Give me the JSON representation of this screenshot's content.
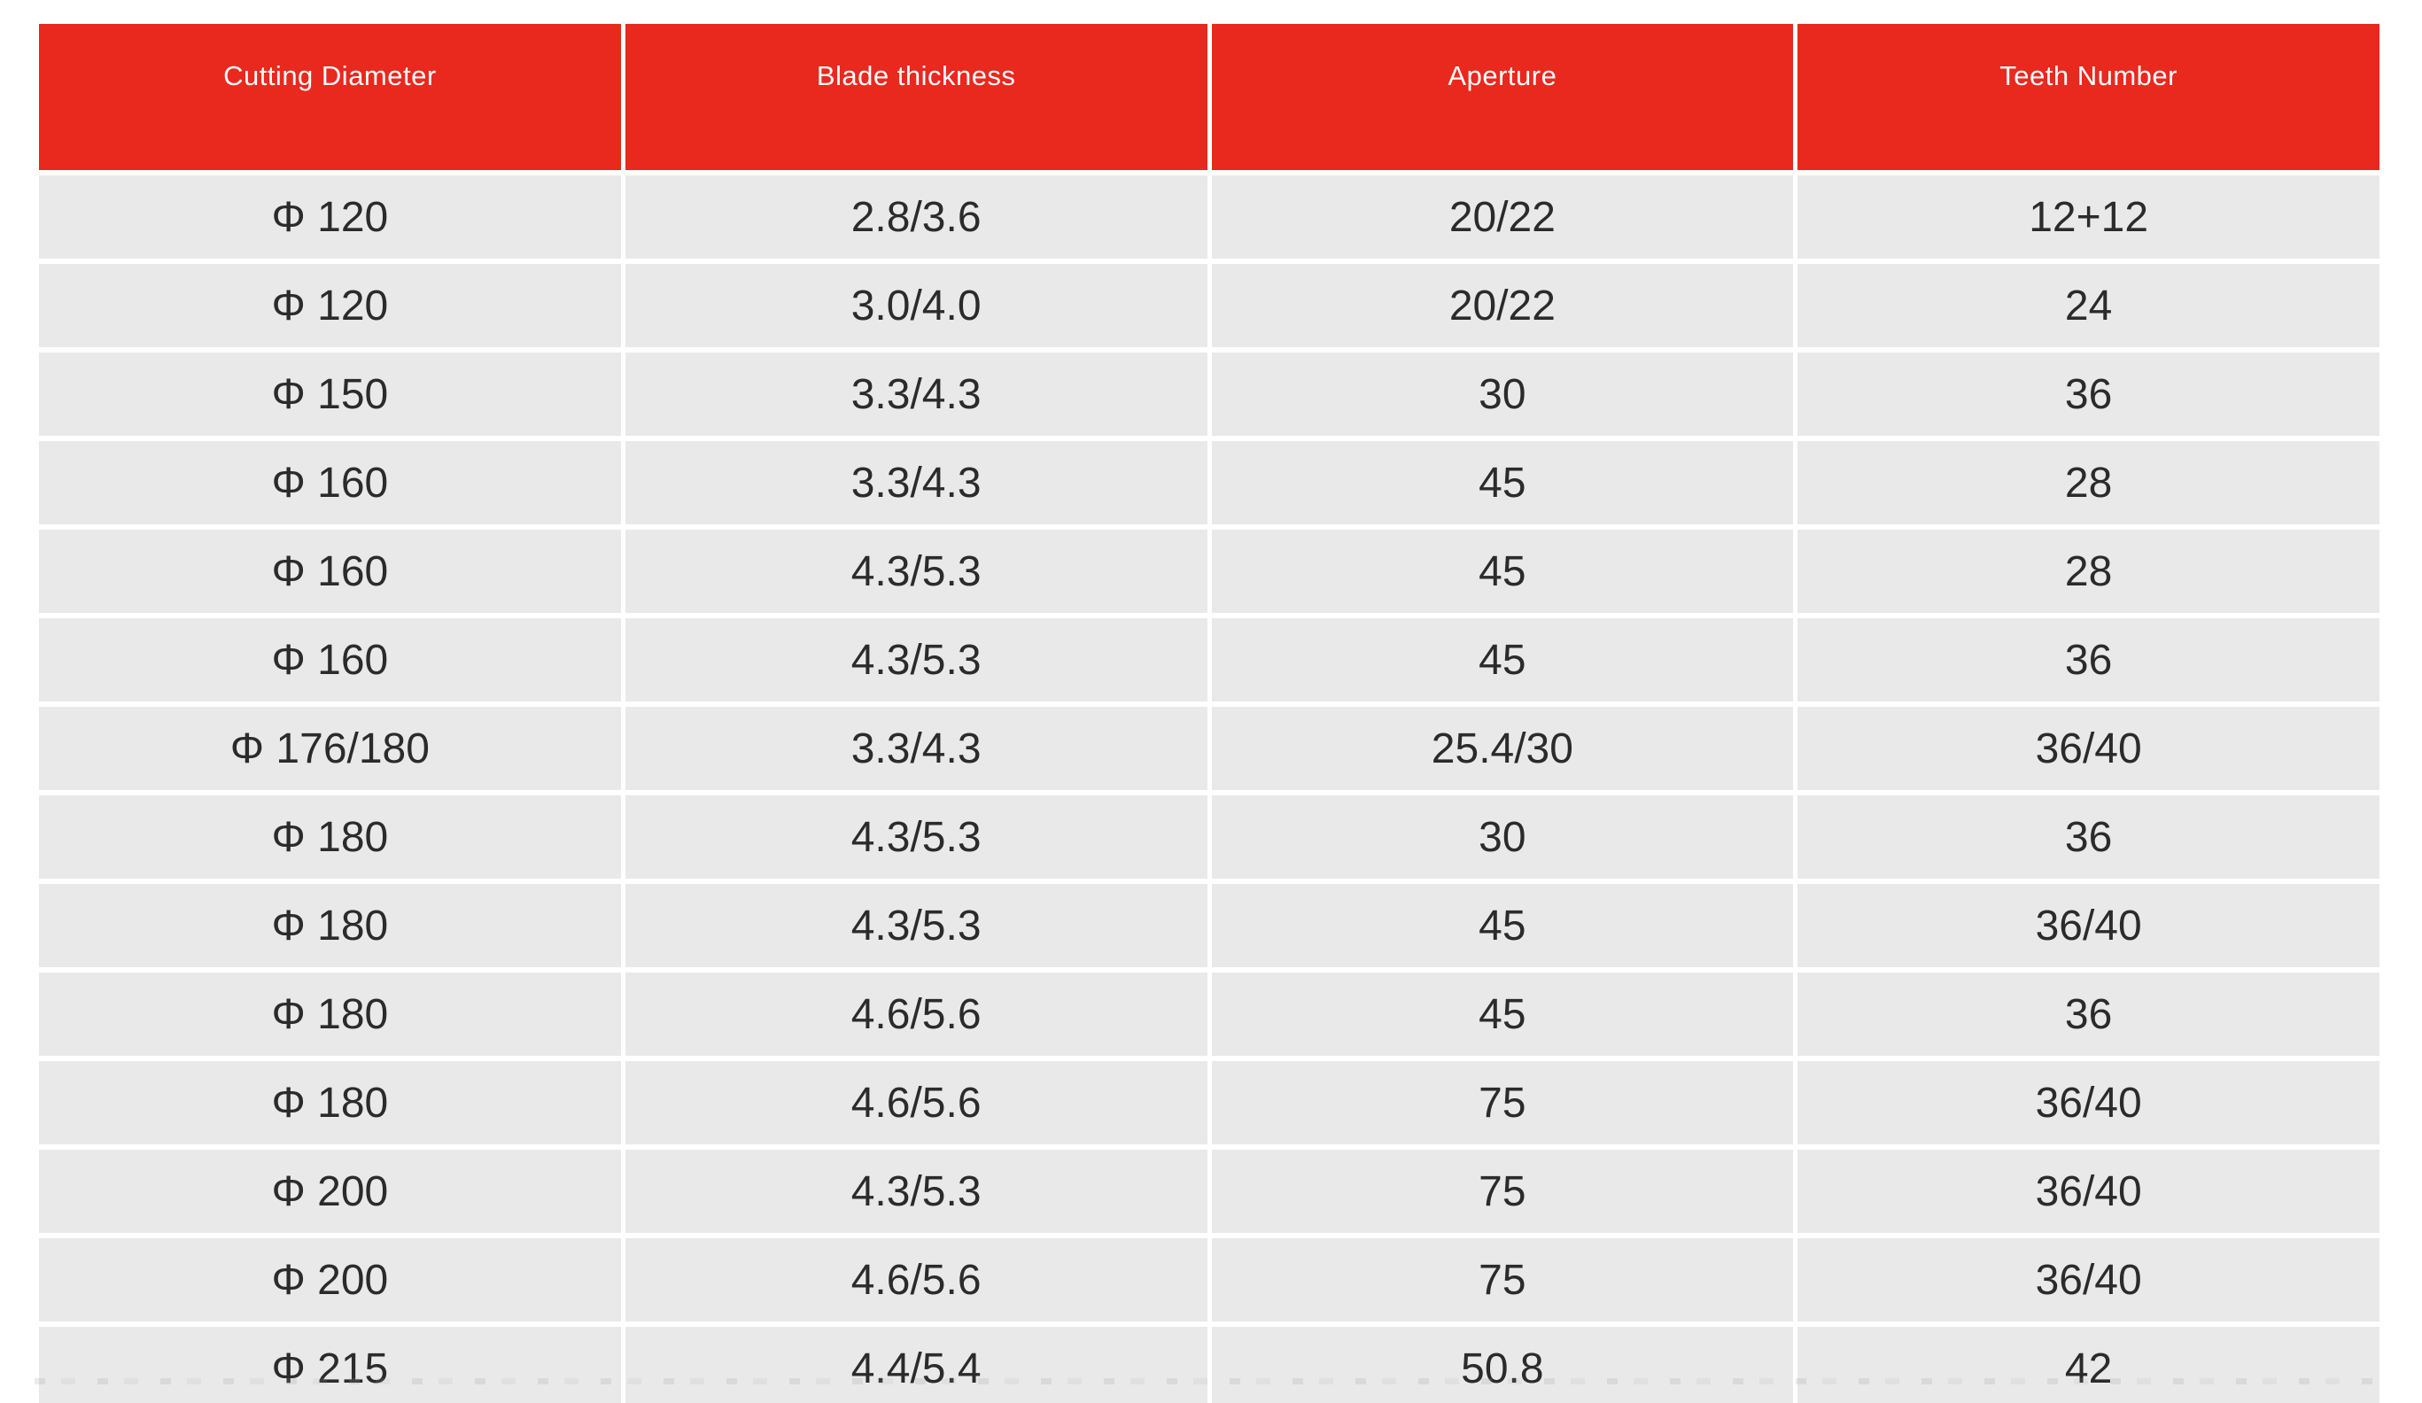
{
  "colors": {
    "header_bg": "#e9281e",
    "header_text": "#ffffff",
    "row_bg": "#e9e9e9",
    "cell_text": "#2b2b2b",
    "page_bg": "#ffffff"
  },
  "chart_data": {
    "type": "table",
    "title": "",
    "columns": [
      "Cutting Diameter",
      "Blade thickness",
      "Aperture",
      "Teeth Number"
    ],
    "rows": [
      [
        "Φ 120",
        "2.8/3.6",
        "20/22",
        "12+12"
      ],
      [
        "Φ 120",
        "3.0/4.0",
        "20/22",
        "24"
      ],
      [
        "Φ 150",
        "3.3/4.3",
        "30",
        "36"
      ],
      [
        "Φ 160",
        "3.3/4.3",
        "45",
        "28"
      ],
      [
        "Φ 160",
        "4.3/5.3",
        "45",
        "28"
      ],
      [
        "Φ 160",
        "4.3/5.3",
        "45",
        "36"
      ],
      [
        "Φ 176/180",
        "3.3/4.3",
        "25.4/30",
        "36/40"
      ],
      [
        "Φ 180",
        "4.3/5.3",
        "30",
        "36"
      ],
      [
        "Φ 180",
        "4.3/5.3",
        "45",
        "36/40"
      ],
      [
        "Φ 180",
        "4.6/5.6",
        "45",
        "36"
      ],
      [
        "Φ 180",
        "4.6/5.6",
        "75",
        "36/40"
      ],
      [
        "Φ 200",
        "4.3/5.3",
        "75",
        "36/40"
      ],
      [
        "Φ 200",
        "4.6/5.6",
        "75",
        "36/40"
      ],
      [
        "Φ 215",
        "4.4/5.4",
        "50.8",
        "42"
      ]
    ]
  }
}
